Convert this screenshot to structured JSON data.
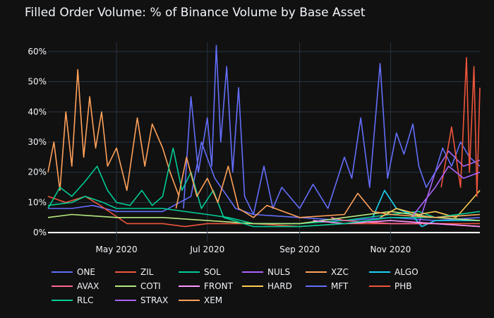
{
  "chart_data": {
    "type": "line",
    "title": "Filled Order Volume: % of Binance Volume by Base Asset",
    "xlabel": "",
    "ylabel": "",
    "x_range": [
      "2020-03-16",
      "2020-12-31"
    ],
    "x_ticks": [
      {
        "date": "2020-05-01",
        "label": "May 2020"
      },
      {
        "date": "2020-07-01",
        "label": "Jul 2020"
      },
      {
        "date": "2020-09-01",
        "label": "Sep 2020"
      },
      {
        "date": "2020-11-01",
        "label": "Nov 2020"
      }
    ],
    "ylim": [
      -3,
      63
    ],
    "y_ticks": [
      {
        "value": 0,
        "label": "0%"
      },
      {
        "value": 10,
        "label": "10%"
      },
      {
        "value": 20,
        "label": "20%"
      },
      {
        "value": 30,
        "label": "30%"
      },
      {
        "value": 40,
        "label": "40%"
      },
      {
        "value": 50,
        "label": "50%"
      },
      {
        "value": 60,
        "label": "60%"
      }
    ],
    "grid": true,
    "legend_position": "bottom",
    "series": [
      {
        "name": "ONE",
        "color": "#636efa",
        "points": [
          [
            "2020-03-16",
            8
          ],
          [
            "2020-04-01",
            8
          ],
          [
            "2020-04-15",
            9
          ],
          [
            "2020-05-01",
            7
          ],
          [
            "2020-06-01",
            7
          ],
          [
            "2020-06-20",
            12
          ],
          [
            "2020-06-27",
            30
          ],
          [
            "2020-07-06",
            18
          ],
          [
            "2020-07-20",
            8
          ],
          [
            "2020-08-01",
            6
          ],
          [
            "2020-09-01",
            5
          ],
          [
            "2020-10-01",
            4
          ],
          [
            "2020-11-01",
            5
          ],
          [
            "2020-12-01",
            4
          ],
          [
            "2020-12-31",
            5
          ]
        ]
      },
      {
        "name": "ZIL",
        "color": "#ef553b",
        "points": [
          [
            "2020-03-16",
            12
          ],
          [
            "2020-03-28",
            10
          ],
          [
            "2020-04-10",
            12
          ],
          [
            "2020-04-20",
            9
          ],
          [
            "2020-05-08",
            3
          ],
          [
            "2020-06-01",
            3
          ],
          [
            "2020-06-16",
            2
          ],
          [
            "2020-07-01",
            3
          ],
          [
            "2020-08-01",
            3
          ],
          [
            "2020-09-01",
            2
          ],
          [
            "2020-10-01",
            3
          ],
          [
            "2020-11-01",
            3
          ],
          [
            "2020-12-01",
            3
          ],
          [
            "2020-12-31",
            3
          ]
        ]
      },
      {
        "name": "SOL",
        "color": "#00cc96",
        "points": [
          [
            "2020-03-16",
            9
          ],
          [
            "2020-04-01",
            10
          ],
          [
            "2020-04-10",
            12
          ],
          [
            "2020-04-22",
            10
          ],
          [
            "2020-05-01",
            8
          ],
          [
            "2020-06-01",
            8
          ],
          [
            "2020-07-01",
            6
          ],
          [
            "2020-07-15",
            5
          ],
          [
            "2020-08-01",
            3
          ],
          [
            "2020-09-01",
            3
          ],
          [
            "2020-10-01",
            4
          ],
          [
            "2020-11-01",
            6
          ],
          [
            "2020-11-20",
            7
          ],
          [
            "2020-12-01",
            5
          ],
          [
            "2020-12-31",
            6
          ]
        ]
      },
      {
        "name": "NULS",
        "color": "#ab63fa",
        "points": [
          [
            "2020-11-20",
            3
          ],
          [
            "2020-12-01",
            20
          ],
          [
            "2020-12-10",
            27
          ],
          [
            "2020-12-20",
            22
          ],
          [
            "2020-12-31",
            24
          ]
        ]
      },
      {
        "name": "XZC",
        "color": "#ffa15a",
        "points": [
          [
            "2020-03-16",
            20
          ],
          [
            "2020-03-20",
            30
          ],
          [
            "2020-03-24",
            14
          ],
          [
            "2020-03-28",
            40
          ],
          [
            "2020-04-01",
            22
          ],
          [
            "2020-04-05",
            54
          ],
          [
            "2020-04-09",
            25
          ],
          [
            "2020-04-13",
            45
          ],
          [
            "2020-04-17",
            28
          ],
          [
            "2020-04-21",
            40
          ],
          [
            "2020-04-25",
            22
          ],
          [
            "2020-05-01",
            28
          ],
          [
            "2020-05-08",
            14
          ],
          [
            "2020-05-15",
            38
          ],
          [
            "2020-05-20",
            22
          ],
          [
            "2020-05-25",
            36
          ],
          [
            "2020-06-01",
            28
          ],
          [
            "2020-06-06",
            20
          ],
          [
            "2020-06-12",
            12
          ]
        ]
      },
      {
        "name": "ALGO",
        "color": "#19d3f3",
        "points": [
          [
            "2020-10-20",
            5
          ],
          [
            "2020-10-28",
            14
          ],
          [
            "2020-11-05",
            8
          ],
          [
            "2020-11-15",
            6
          ],
          [
            "2020-11-22",
            2
          ],
          [
            "2020-12-01",
            4
          ],
          [
            "2020-12-15",
            4
          ],
          [
            "2020-12-31",
            4
          ]
        ]
      },
      {
        "name": "AVAX",
        "color": "#ff6692",
        "points": [
          [
            "2020-09-22",
            5
          ],
          [
            "2020-10-01",
            4
          ],
          [
            "2020-11-01",
            3
          ],
          [
            "2020-12-01",
            3
          ],
          [
            "2020-12-31",
            2
          ]
        ]
      },
      {
        "name": "COTI",
        "color": "#b6e880",
        "points": [
          [
            "2020-03-16",
            5
          ],
          [
            "2020-04-01",
            6
          ],
          [
            "2020-05-01",
            5
          ],
          [
            "2020-06-01",
            5
          ],
          [
            "2020-07-01",
            4
          ],
          [
            "2020-08-01",
            3
          ],
          [
            "2020-09-01",
            3
          ],
          [
            "2020-10-01",
            5
          ],
          [
            "2020-11-01",
            7
          ],
          [
            "2020-12-01",
            5
          ],
          [
            "2020-12-31",
            4
          ]
        ]
      },
      {
        "name": "FRONT",
        "color": "#ff97ff",
        "points": [
          [
            "2020-09-10",
            4
          ],
          [
            "2020-10-01",
            3
          ],
          [
            "2020-11-01",
            4
          ],
          [
            "2020-12-01",
            3
          ],
          [
            "2020-12-31",
            2
          ]
        ]
      },
      {
        "name": "HARD",
        "color": "#fecb52",
        "points": [
          [
            "2020-10-25",
            5
          ],
          [
            "2020-11-05",
            8
          ],
          [
            "2020-11-20",
            6
          ],
          [
            "2020-12-01",
            7
          ],
          [
            "2020-12-15",
            5
          ],
          [
            "2020-12-24",
            10
          ],
          [
            "2020-12-31",
            14
          ]
        ]
      },
      {
        "name": "MFT",
        "color": "#636efa",
        "points": [
          [
            "2020-06-15",
            8
          ],
          [
            "2020-06-20",
            45
          ],
          [
            "2020-06-25",
            20
          ],
          [
            "2020-07-01",
            38
          ],
          [
            "2020-07-04",
            22
          ],
          [
            "2020-07-07",
            62
          ],
          [
            "2020-07-10",
            30
          ],
          [
            "2020-07-14",
            55
          ],
          [
            "2020-07-18",
            20
          ],
          [
            "2020-07-22",
            48
          ],
          [
            "2020-07-26",
            12
          ],
          [
            "2020-08-01",
            6
          ],
          [
            "2020-08-08",
            22
          ],
          [
            "2020-08-14",
            8
          ],
          [
            "2020-08-20",
            15
          ],
          [
            "2020-09-01",
            8
          ],
          [
            "2020-09-10",
            16
          ],
          [
            "2020-09-20",
            8
          ],
          [
            "2020-10-01",
            25
          ],
          [
            "2020-10-06",
            18
          ],
          [
            "2020-10-12",
            38
          ],
          [
            "2020-10-18",
            15
          ],
          [
            "2020-10-25",
            56
          ],
          [
            "2020-10-30",
            18
          ],
          [
            "2020-11-05",
            33
          ],
          [
            "2020-11-10",
            26
          ],
          [
            "2020-11-16",
            36
          ],
          [
            "2020-11-20",
            22
          ],
          [
            "2020-11-25",
            15
          ],
          [
            "2020-12-01",
            20
          ],
          [
            "2020-12-06",
            28
          ],
          [
            "2020-12-12",
            22
          ],
          [
            "2020-12-18",
            30
          ],
          [
            "2020-12-24",
            25
          ],
          [
            "2020-12-31",
            22
          ]
        ]
      },
      {
        "name": "PHB",
        "color": "#ef553b",
        "points": [
          [
            "2020-12-05",
            15
          ],
          [
            "2020-12-12",
            35
          ],
          [
            "2020-12-18",
            15
          ],
          [
            "2020-12-22",
            58
          ],
          [
            "2020-12-24",
            20
          ],
          [
            "2020-12-27",
            55
          ],
          [
            "2020-12-29",
            12
          ],
          [
            "2020-12-31",
            48
          ]
        ]
      },
      {
        "name": "RLC",
        "color": "#00cc96",
        "points": [
          [
            "2020-03-16",
            8
          ],
          [
            "2020-03-24",
            15
          ],
          [
            "2020-04-01",
            12
          ],
          [
            "2020-04-10",
            17
          ],
          [
            "2020-04-18",
            22
          ],
          [
            "2020-04-25",
            14
          ],
          [
            "2020-05-01",
            10
          ],
          [
            "2020-05-10",
            9
          ],
          [
            "2020-05-18",
            14
          ],
          [
            "2020-05-25",
            9
          ],
          [
            "2020-06-01",
            12
          ],
          [
            "2020-06-08",
            28
          ],
          [
            "2020-06-14",
            14
          ],
          [
            "2020-06-20",
            20
          ],
          [
            "2020-06-27",
            8
          ],
          [
            "2020-07-05",
            14
          ],
          [
            "2020-07-12",
            5
          ],
          [
            "2020-08-01",
            2
          ],
          [
            "2020-09-01",
            2
          ],
          [
            "2020-10-01",
            3
          ],
          [
            "2020-11-01",
            5
          ],
          [
            "2020-12-01",
            5
          ],
          [
            "2020-12-31",
            7
          ]
        ]
      },
      {
        "name": "STRAX",
        "color": "#ab63fa",
        "points": [
          [
            "2020-11-15",
            5
          ],
          [
            "2020-12-01",
            15
          ],
          [
            "2020-12-10",
            22
          ],
          [
            "2020-12-20",
            18
          ],
          [
            "2020-12-31",
            20
          ]
        ]
      },
      {
        "name": "XEM",
        "color": "#ffa15a",
        "points": [
          [
            "2020-06-10",
            8
          ],
          [
            "2020-06-17",
            25
          ],
          [
            "2020-06-24",
            12
          ],
          [
            "2020-07-01",
            18
          ],
          [
            "2020-07-08",
            10
          ],
          [
            "2020-07-15",
            22
          ],
          [
            "2020-07-22",
            8
          ],
          [
            "2020-08-01",
            5
          ],
          [
            "2020-08-10",
            9
          ],
          [
            "2020-09-01",
            5
          ],
          [
            "2020-10-01",
            6
          ],
          [
            "2020-10-10",
            13
          ],
          [
            "2020-10-20",
            7
          ],
          [
            "2020-11-01",
            6
          ],
          [
            "2020-12-01",
            5
          ],
          [
            "2020-12-31",
            6
          ]
        ]
      }
    ]
  }
}
